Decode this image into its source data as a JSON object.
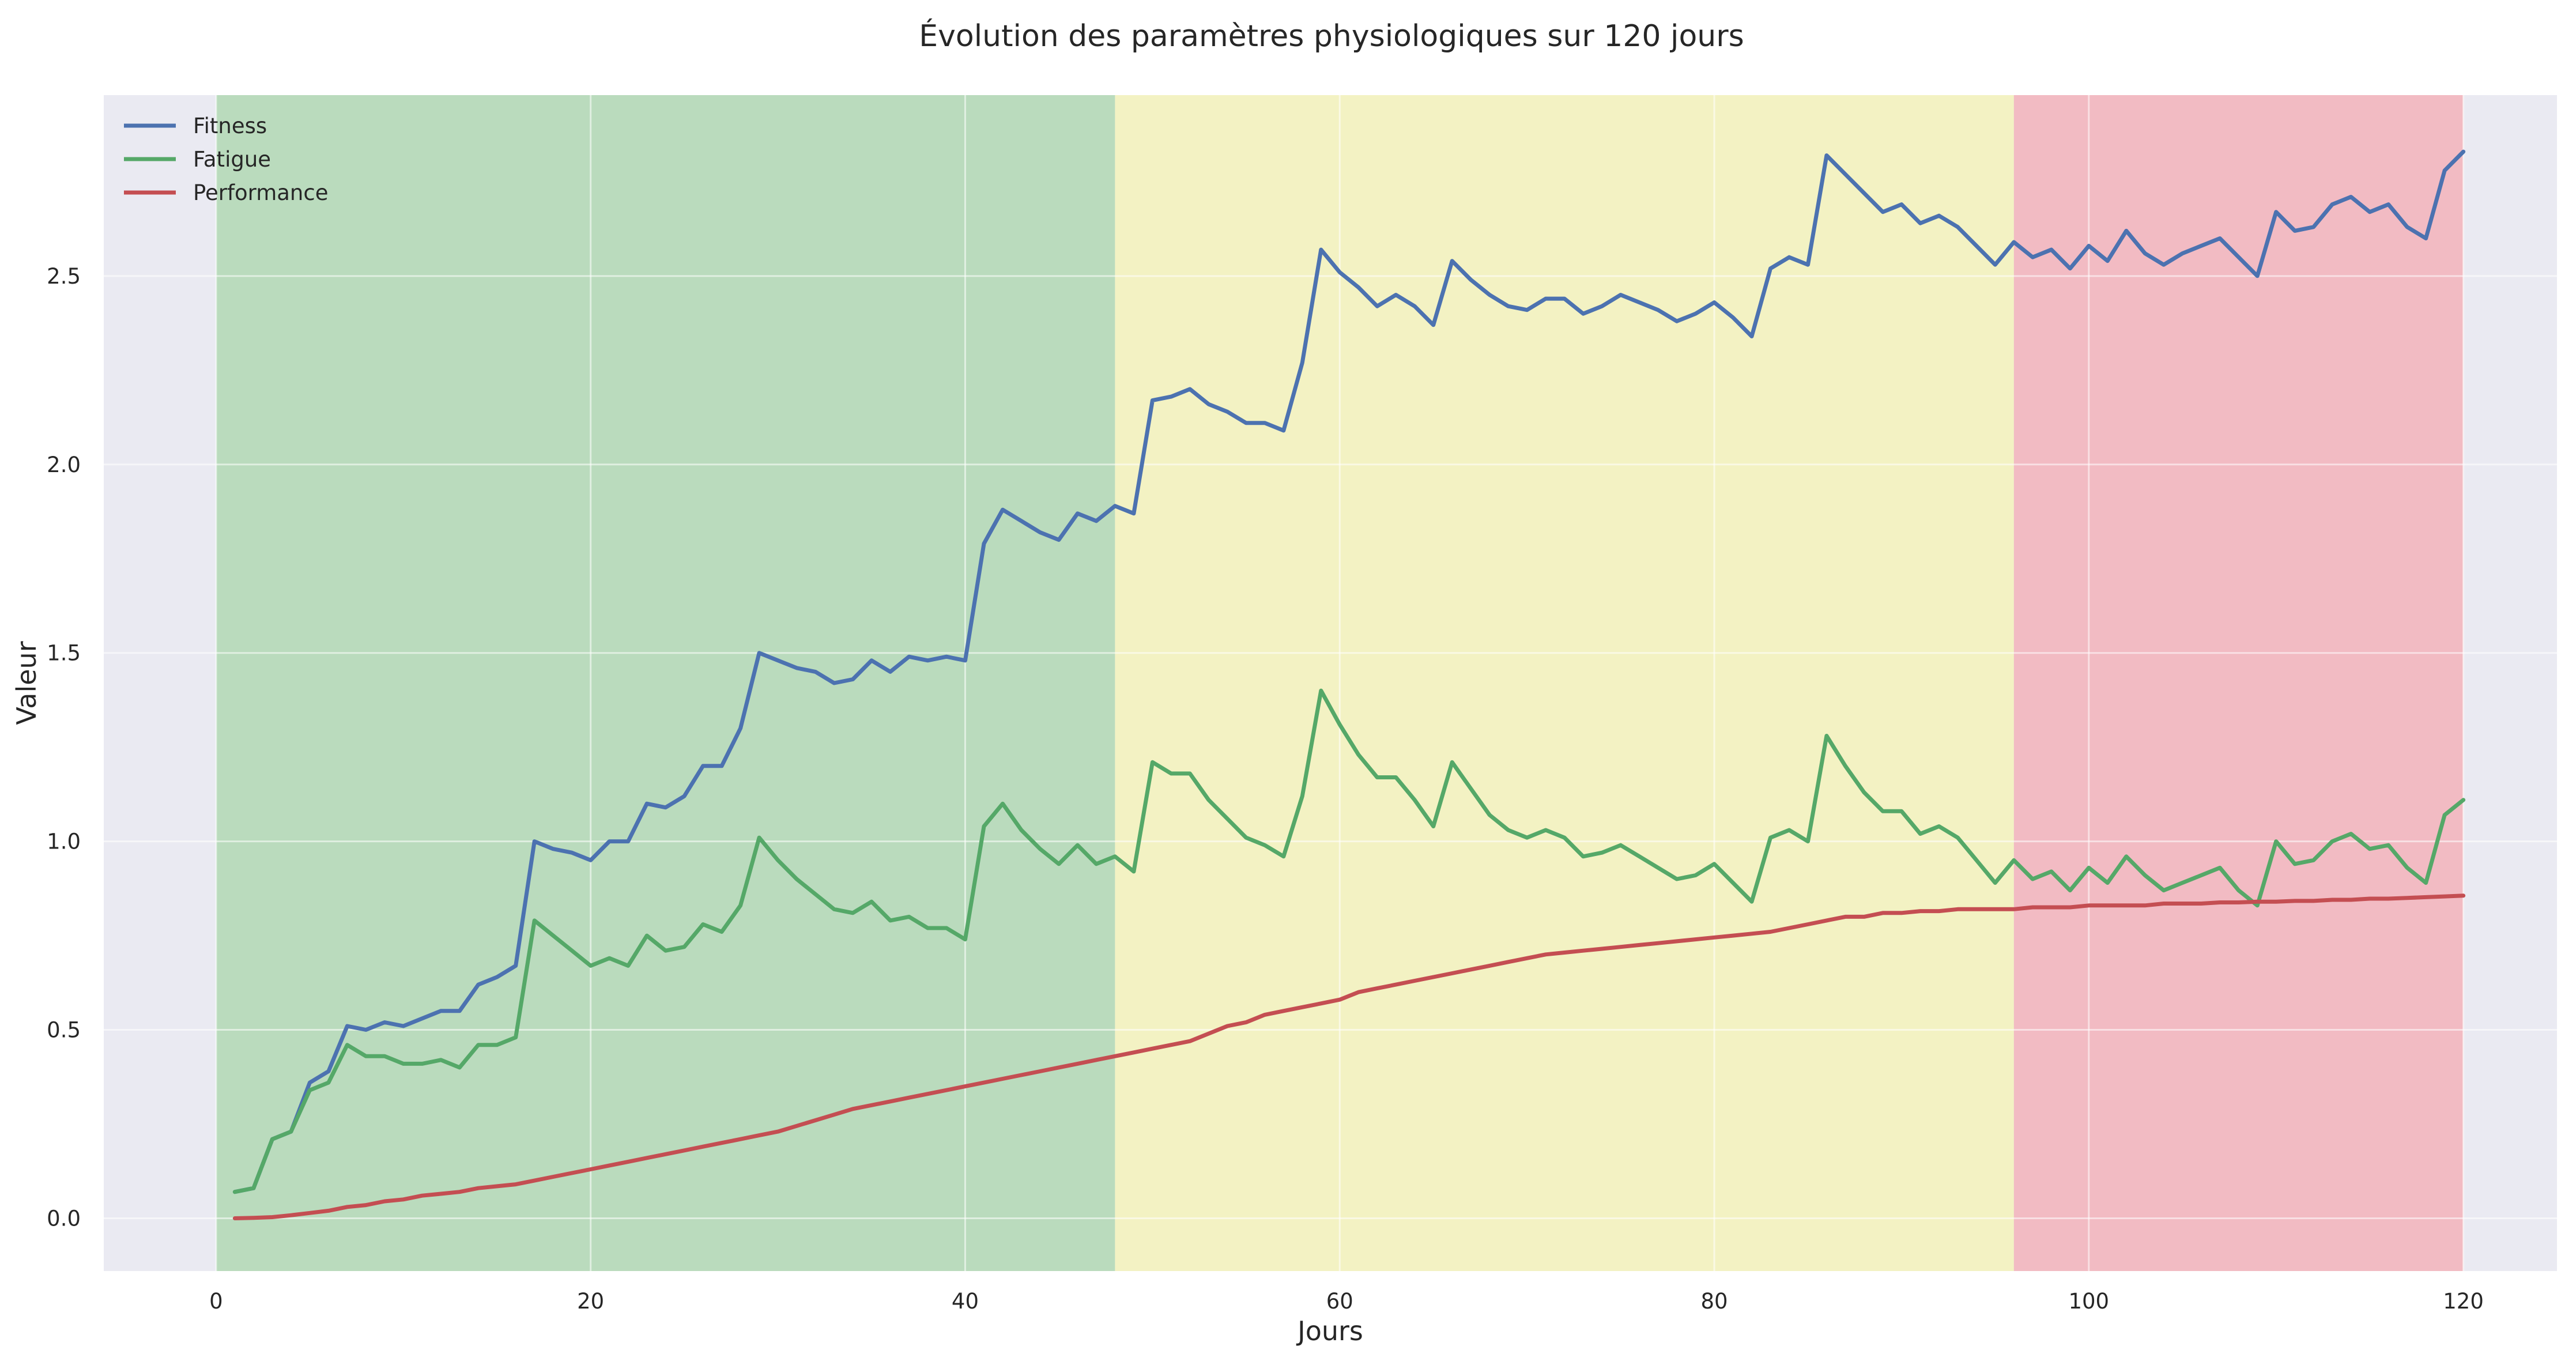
{
  "chart_data": {
    "type": "line",
    "title": "Évolution des paramètres physiologiques sur 120 jours",
    "xlabel": "Jours",
    "ylabel": "Valeur",
    "xlim": [
      -6,
      125
    ],
    "ylim": [
      -0.14,
      2.98
    ],
    "x_ticks": [
      0,
      20,
      40,
      60,
      80,
      100,
      120
    ],
    "y_ticks": [
      0.0,
      0.5,
      1.0,
      1.5,
      2.0,
      2.5
    ],
    "x_tick_labels": [
      "0",
      "20",
      "40",
      "60",
      "80",
      "100",
      "120"
    ],
    "y_tick_labels": [
      "0.0",
      "0.5",
      "1.0",
      "1.5",
      "2.0",
      "2.5"
    ],
    "grid": true,
    "legend_position": "top-left",
    "background_color": "#eaeaf2",
    "phases": [
      {
        "x0": 0,
        "x1": 48,
        "color": "#a8d5a8"
      },
      {
        "x0": 48,
        "x1": 96,
        "color": "#f7f5b0"
      },
      {
        "x0": 96,
        "x1": 120,
        "color": "#f5a9b0"
      }
    ],
    "x": [
      1,
      2,
      3,
      4,
      5,
      6,
      7,
      8,
      9,
      10,
      11,
      12,
      13,
      14,
      15,
      16,
      17,
      18,
      19,
      20,
      21,
      22,
      23,
      24,
      25,
      26,
      27,
      28,
      29,
      30,
      31,
      32,
      33,
      34,
      35,
      36,
      37,
      38,
      39,
      40,
      41,
      42,
      43,
      44,
      45,
      46,
      47,
      48,
      49,
      50,
      51,
      52,
      53,
      54,
      55,
      56,
      57,
      58,
      59,
      60,
      61,
      62,
      63,
      64,
      65,
      66,
      67,
      68,
      69,
      70,
      71,
      72,
      73,
      74,
      75,
      76,
      77,
      78,
      79,
      80,
      81,
      82,
      83,
      84,
      85,
      86,
      87,
      88,
      89,
      90,
      91,
      92,
      93,
      94,
      95,
      96,
      97,
      98,
      99,
      100,
      101,
      102,
      103,
      104,
      105,
      106,
      107,
      108,
      109,
      110,
      111,
      112,
      113,
      114,
      115,
      116,
      117,
      118,
      119,
      120
    ],
    "series": [
      {
        "name": "Fitness",
        "color": "#4c72b0",
        "values": [
          0.07,
          0.08,
          0.21,
          0.23,
          0.36,
          0.39,
          0.51,
          0.5,
          0.52,
          0.51,
          0.53,
          0.55,
          0.55,
          0.62,
          0.64,
          0.67,
          1.0,
          0.98,
          0.97,
          0.95,
          1.0,
          1.0,
          1.1,
          1.09,
          1.12,
          1.2,
          1.2,
          1.3,
          1.5,
          1.48,
          1.46,
          1.45,
          1.42,
          1.43,
          1.48,
          1.45,
          1.49,
          1.48,
          1.49,
          1.48,
          1.79,
          1.88,
          1.85,
          1.82,
          1.8,
          1.87,
          1.85,
          1.89,
          1.87,
          2.17,
          2.18,
          2.2,
          2.16,
          2.14,
          2.11,
          2.11,
          2.09,
          2.27,
          2.57,
          2.51,
          2.47,
          2.42,
          2.45,
          2.42,
          2.37,
          2.54,
          2.49,
          2.45,
          2.42,
          2.41,
          2.44,
          2.44,
          2.4,
          2.42,
          2.45,
          2.43,
          2.41,
          2.38,
          2.4,
          2.43,
          2.39,
          2.34,
          2.52,
          2.55,
          2.53,
          2.82,
          2.77,
          2.72,
          2.67,
          2.69,
          2.64,
          2.66,
          2.63,
          2.58,
          2.53,
          2.59,
          2.55,
          2.57,
          2.52,
          2.58,
          2.54,
          2.62,
          2.56,
          2.53,
          2.56,
          2.58,
          2.6,
          2.55,
          2.5,
          2.67,
          2.62,
          2.63,
          2.69,
          2.71,
          2.67,
          2.69,
          2.63,
          2.6,
          2.78,
          2.83
        ]
      },
      {
        "name": "Fatigue",
        "color": "#55a868",
        "values": [
          0.07,
          0.08,
          0.21,
          0.23,
          0.34,
          0.36,
          0.46,
          0.43,
          0.43,
          0.41,
          0.41,
          0.42,
          0.4,
          0.46,
          0.46,
          0.48,
          0.79,
          0.75,
          0.71,
          0.67,
          0.69,
          0.67,
          0.75,
          0.71,
          0.72,
          0.78,
          0.76,
          0.83,
          1.01,
          0.95,
          0.9,
          0.86,
          0.82,
          0.81,
          0.84,
          0.79,
          0.8,
          0.77,
          0.77,
          0.74,
          1.04,
          1.1,
          1.03,
          0.98,
          0.94,
          0.99,
          0.94,
          0.96,
          0.92,
          1.21,
          1.18,
          1.18,
          1.11,
          1.06,
          1.01,
          0.99,
          0.96,
          1.12,
          1.4,
          1.31,
          1.23,
          1.17,
          1.17,
          1.11,
          1.04,
          1.21,
          1.14,
          1.07,
          1.03,
          1.01,
          1.03,
          1.01,
          0.96,
          0.97,
          0.99,
          0.96,
          0.93,
          0.9,
          0.91,
          0.94,
          0.89,
          0.84,
          1.01,
          1.03,
          1.0,
          1.28,
          1.2,
          1.13,
          1.08,
          1.08,
          1.02,
          1.04,
          1.01,
          0.95,
          0.89,
          0.95,
          0.9,
          0.92,
          0.87,
          0.93,
          0.89,
          0.96,
          0.91,
          0.87,
          0.89,
          0.91,
          0.93,
          0.87,
          0.83,
          1.0,
          0.94,
          0.95,
          1.0,
          1.02,
          0.98,
          0.99,
          0.93,
          0.89,
          1.07,
          1.11
        ]
      },
      {
        "name": "Performance",
        "color": "#c44e52",
        "values": [
          0.0,
          0.001,
          0.003,
          0.008,
          0.014,
          0.02,
          0.03,
          0.035,
          0.045,
          0.05,
          0.06,
          0.065,
          0.07,
          0.08,
          0.085,
          0.09,
          0.1,
          0.11,
          0.12,
          0.13,
          0.14,
          0.15,
          0.16,
          0.17,
          0.18,
          0.19,
          0.2,
          0.21,
          0.22,
          0.23,
          0.245,
          0.26,
          0.275,
          0.29,
          0.3,
          0.31,
          0.32,
          0.33,
          0.34,
          0.35,
          0.36,
          0.37,
          0.38,
          0.39,
          0.4,
          0.41,
          0.42,
          0.43,
          0.44,
          0.45,
          0.46,
          0.47,
          0.49,
          0.51,
          0.52,
          0.54,
          0.55,
          0.56,
          0.57,
          0.58,
          0.6,
          0.61,
          0.62,
          0.63,
          0.64,
          0.65,
          0.66,
          0.67,
          0.68,
          0.69,
          0.7,
          0.705,
          0.71,
          0.715,
          0.72,
          0.725,
          0.73,
          0.735,
          0.74,
          0.745,
          0.75,
          0.755,
          0.76,
          0.77,
          0.78,
          0.79,
          0.8,
          0.8,
          0.81,
          0.81,
          0.815,
          0.815,
          0.82,
          0.82,
          0.82,
          0.82,
          0.825,
          0.825,
          0.825,
          0.83,
          0.83,
          0.83,
          0.83,
          0.835,
          0.835,
          0.835,
          0.838,
          0.838,
          0.84,
          0.84,
          0.842,
          0.842,
          0.845,
          0.845,
          0.848,
          0.848,
          0.85,
          0.852,
          0.854,
          0.856
        ]
      }
    ]
  }
}
